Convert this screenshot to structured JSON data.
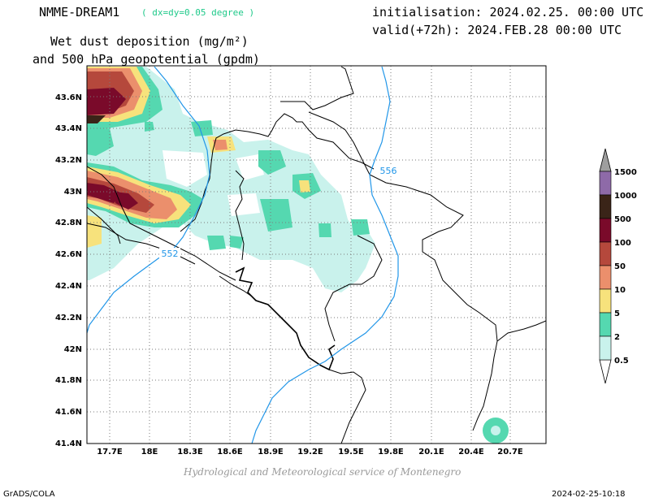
{
  "header": {
    "model": "NMME-DREAM1",
    "resolution": "( dx=dy=0.05 degree )",
    "init": "initialisation: 2024.02.25. 00:00 UTC",
    "valid": "valid(+72h): 2024.FEB.28 00:00 UTC",
    "variable_line1": "Wet dust deposition (mg/m²)",
    "variable_line2": "and 500 hPa geopotential (gpdm)"
  },
  "map": {
    "lon_range": [
      17.5,
      21.0
    ],
    "lat_range": [
      41.4,
      43.8
    ],
    "x_ticks": [
      "17.7E",
      "18E",
      "18.3E",
      "18.6E",
      "18.9E",
      "19.2E",
      "19.5E",
      "19.8E",
      "20.1E",
      "20.4E",
      "20.7E"
    ],
    "y_ticks": [
      "43.6N",
      "43.4N",
      "43.2N",
      "43N",
      "42.8N",
      "42.6N",
      "42.4N",
      "42.2N",
      "42N",
      "41.8N",
      "41.6N",
      "41.4N"
    ],
    "contour_labels": [
      "552",
      "556"
    ],
    "contour_color": "#2196e8"
  },
  "legend": {
    "levels": [
      "1500",
      "1000",
      "500",
      "100",
      "50",
      "10",
      "5",
      "2",
      "0.5"
    ],
    "colors": [
      "#8e6aa8",
      "#3a2418",
      "#7a0a2a",
      "#b5483c",
      "#eb8f6c",
      "#f7e27c",
      "#55d8b0",
      "#c9f2ec"
    ]
  },
  "footer": {
    "credit": "Hydrological and Meteorological service of Montenegro",
    "software": "GrADS/COLA",
    "timestamp": "2024-02-25-10:18"
  }
}
